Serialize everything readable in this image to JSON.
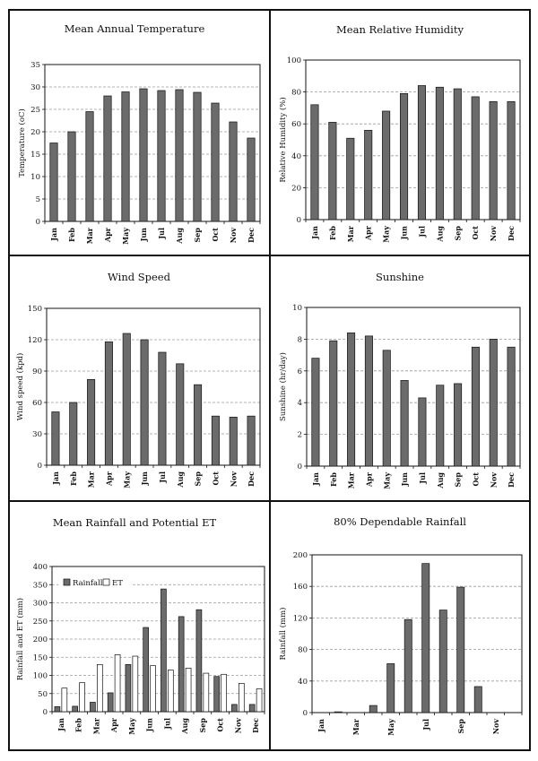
{
  "chart_data": [
    {
      "type": "bar",
      "title": "Mean Annual Temperature",
      "ylabel": "Temperature (oC)",
      "categories": [
        "Jan",
        "Feb",
        "Mar",
        "Apr",
        "May",
        "Jun",
        "Jul",
        "Aug",
        "Sep",
        "Oct",
        "Nov",
        "Dec"
      ],
      "values": [
        17.5,
        20,
        24.5,
        28,
        28.9,
        29.6,
        29.2,
        29.4,
        28.8,
        26.4,
        22.2,
        18.6
      ],
      "ylim": [
        0,
        35
      ],
      "yticks": [
        0,
        5,
        10,
        15,
        20,
        25,
        30,
        35
      ],
      "grid": true
    },
    {
      "type": "bar",
      "title": "Mean Relative Humidity",
      "ylabel": "Relative Humidity (%)",
      "categories": [
        "Jan",
        "Feb",
        "Mar",
        "Apr",
        "May",
        "Jun",
        "Jul",
        "Aug",
        "Sep",
        "Oct",
        "Nov",
        "Dec"
      ],
      "values": [
        72,
        61,
        51,
        56,
        68,
        79,
        84,
        83,
        82,
        77,
        74,
        74
      ],
      "ylim": [
        0,
        100
      ],
      "yticks": [
        0,
        20,
        40,
        60,
        80,
        100
      ],
      "grid": true
    },
    {
      "type": "bar",
      "title": "Wind Speed",
      "ylabel": "Wind speed (kpd)",
      "categories": [
        "Jan",
        "Feb",
        "Mar",
        "Apr",
        "May",
        "Jun",
        "Jul",
        "Aug",
        "Sep",
        "Oct",
        "Nov",
        "Dec"
      ],
      "values": [
        51,
        60,
        82,
        118,
        126,
        120,
        108,
        97,
        77,
        47,
        46,
        47
      ],
      "ylim": [
        0,
        150
      ],
      "yticks": [
        0,
        30,
        60,
        90,
        120,
        150
      ],
      "grid": true
    },
    {
      "type": "bar",
      "title": "Sunshine",
      "ylabel": "Sunshine (hr/day)",
      "categories": [
        "Jan",
        "Feb",
        "Mar",
        "Apr",
        "May",
        "Jun",
        "Jul",
        "Aug",
        "Sep",
        "Oct",
        "Nov",
        "Dec"
      ],
      "values": [
        6.8,
        7.9,
        8.4,
        8.2,
        7.3,
        5.4,
        4.3,
        5.1,
        5.2,
        7.5,
        8.0,
        7.5
      ],
      "ylim": [
        0,
        10
      ],
      "yticks": [
        0,
        2,
        4,
        6,
        8,
        10
      ],
      "grid": true
    },
    {
      "type": "bar",
      "title": "Mean Rainfall and Potential ET",
      "ylabel": "Rainfall and ET (mm)",
      "categories": [
        "Jan",
        "Feb",
        "Mar",
        "Apr",
        "May",
        "Jun",
        "Jul",
        "Aug",
        "Sep",
        "Oct",
        "Nov",
        "Dec"
      ],
      "series": [
        {
          "name": "Rainfall",
          "values": [
            14,
            15,
            26,
            52,
            130,
            232,
            338,
            262,
            281,
            97,
            20,
            20
          ]
        },
        {
          "name": "ET",
          "values": [
            65,
            80,
            130,
            157,
            153,
            127,
            115,
            120,
            106,
            103,
            78,
            63
          ]
        }
      ],
      "legend": "top-left",
      "ylim": [
        0,
        400
      ],
      "yticks": [
        0,
        50,
        100,
        150,
        200,
        250,
        300,
        350,
        400
      ],
      "grid": true
    },
    {
      "type": "bar",
      "title": "80% Dependable Rainfall",
      "ylabel": "Rainfall (mm)",
      "categories": [
        "Jan",
        "Feb",
        "Mar",
        "Apr",
        "May",
        "Jun",
        "Jul",
        "Aug",
        "Sep",
        "Oct",
        "Nov",
        "Dec"
      ],
      "xticklabels": [
        "Jan",
        "",
        "Mar",
        "",
        "May",
        "",
        "Jul",
        "",
        "Sep",
        "",
        "Nov",
        ""
      ],
      "values": [
        0,
        1,
        0,
        9,
        62,
        118,
        189,
        130,
        159,
        33,
        0,
        0
      ],
      "ylim": [
        0,
        200
      ],
      "yticks": [
        0,
        40,
        80,
        120,
        160,
        200
      ],
      "grid": true
    }
  ],
  "colors": {
    "bar_dark": "#6b6b6b",
    "bar_light": "#ffffff",
    "frame": "#111111",
    "grid": "#9a9a9a"
  }
}
